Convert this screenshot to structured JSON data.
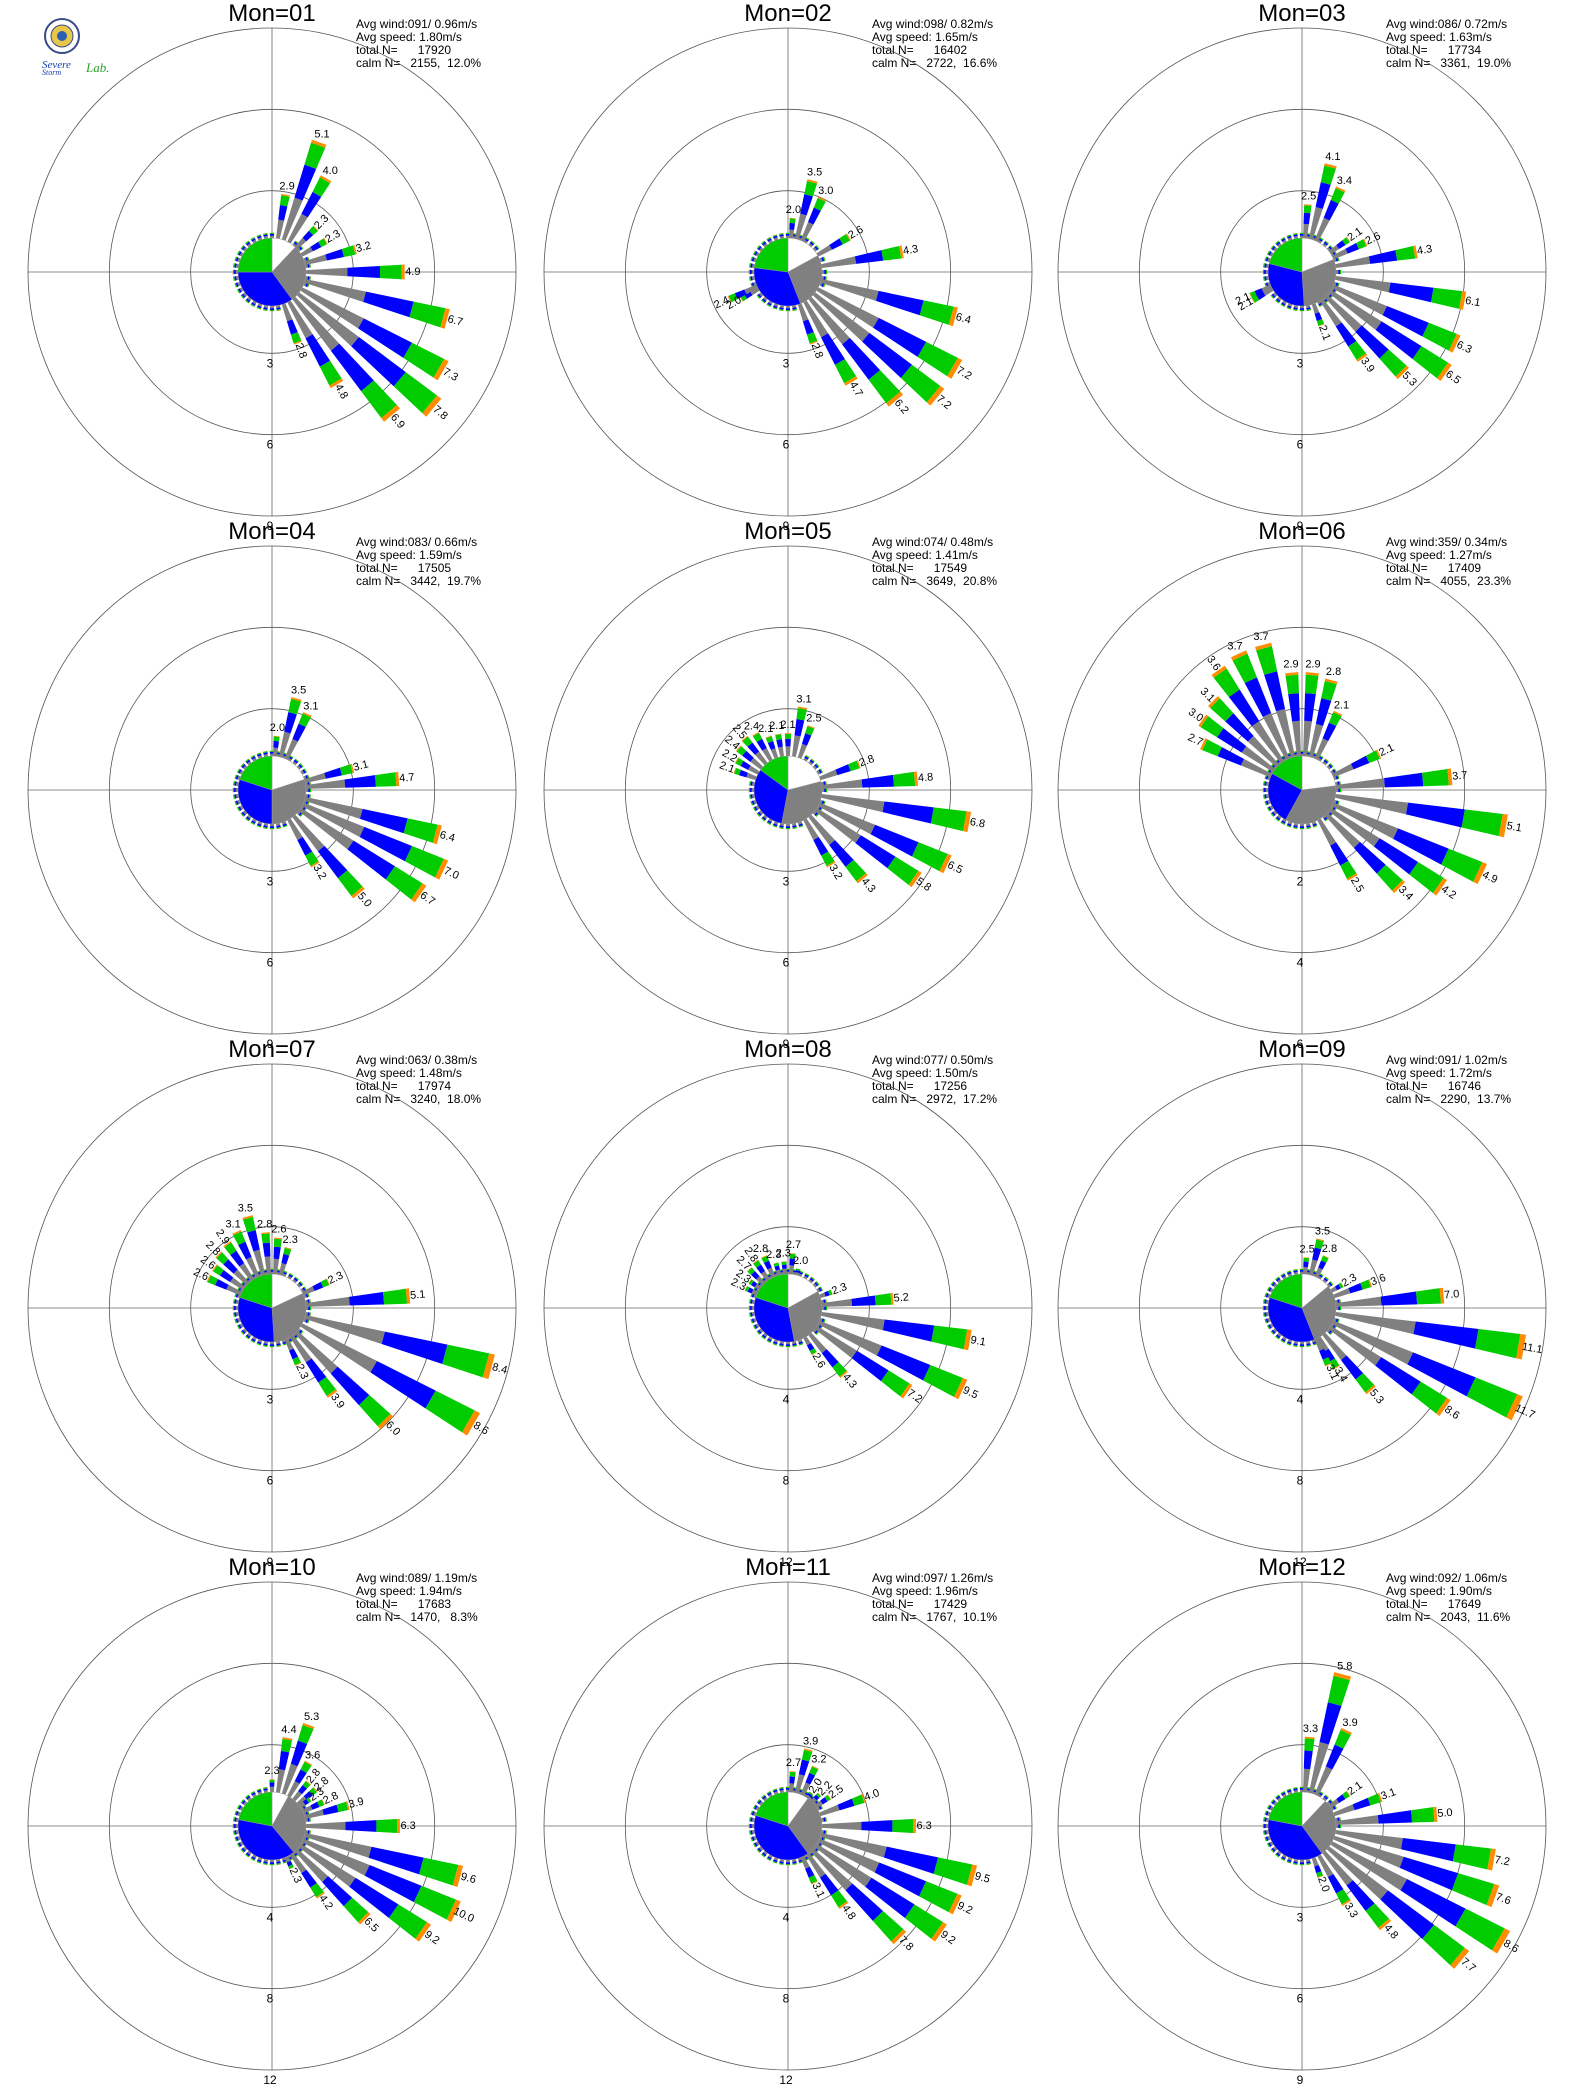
{
  "logo": {
    "line1": "Severe",
    "line2": "Storm",
    "line3": "Lab."
  },
  "colors": {
    "calm": "#ffffff",
    "cat1": "#808080",
    "cat2": "#0000ff",
    "cat3": "#00cc00",
    "cat4": "#ff8c00",
    "grid": "#bfbfbf",
    "axis": "#666666"
  },
  "chart_data": [
    {
      "type": "rose",
      "title": "Mon=01",
      "stats": [
        "Avg wind:091/ 0.96m/s",
        "Avg speed: 1.80m/s",
        "total N=      17920",
        "calm N=   2155,  12.0%"
      ],
      "ring_labels": [
        "3",
        "6",
        "9"
      ],
      "rmax": 9,
      "pie": [
        0.12,
        0.28,
        0.35,
        0.25
      ],
      "pie_start": 0,
      "bar_labels": [
        {
          "dir": 10,
          "v": 2.9
        },
        {
          "dir": 20,
          "v": 5.1
        },
        {
          "dir": 30,
          "v": 4.0
        },
        {
          "dir": 45,
          "v": 2.3
        },
        {
          "dir": 60,
          "v": 2.3
        },
        {
          "dir": 75,
          "v": 3.2
        },
        {
          "dir": 90,
          "v": 4.9
        },
        {
          "dir": 105,
          "v": 6.7
        },
        {
          "dir": 120,
          "v": 7.3
        },
        {
          "dir": 130,
          "v": 7.8
        },
        {
          "dir": 140,
          "v": 6.9
        },
        {
          "dir": 150,
          "v": 4.8
        },
        {
          "dir": 160,
          "v": 2.8
        }
      ]
    },
    {
      "type": "rose",
      "title": "Mon=02",
      "stats": [
        "Avg wind:098/ 0.82m/s",
        "Avg speed: 1.65m/s",
        "total N=      16402",
        "calm N=   2722,  16.6%"
      ],
      "ring_labels": [
        "3",
        "6",
        "9"
      ],
      "rmax": 9,
      "pie": [
        0.17,
        0.27,
        0.33,
        0.23
      ],
      "pie_start": 0,
      "bar_labels": [
        {
          "dir": 5,
          "v": 2.0
        },
        {
          "dir": 15,
          "v": 3.5
        },
        {
          "dir": 25,
          "v": 3.0
        },
        {
          "dir": 60,
          "v": 2.6
        },
        {
          "dir": 80,
          "v": 4.3
        },
        {
          "dir": 105,
          "v": 6.4
        },
        {
          "dir": 120,
          "v": 7.2
        },
        {
          "dir": 130,
          "v": 7.2
        },
        {
          "dir": 140,
          "v": 6.2
        },
        {
          "dir": 150,
          "v": 4.7
        },
        {
          "dir": 160,
          "v": 2.8
        },
        {
          "dir": 240,
          "v": 2.0
        },
        {
          "dir": 245,
          "v": 2.4
        }
      ]
    },
    {
      "type": "rose",
      "title": "Mon=03",
      "stats": [
        "Avg wind:086/ 0.72m/s",
        "Avg speed: 1.63m/s",
        "total N=      17734",
        "calm N=   3361,  19.0%"
      ],
      "ring_labels": [
        "3",
        "6",
        "9"
      ],
      "rmax": 9,
      "pie": [
        0.19,
        0.3,
        0.3,
        0.21
      ],
      "pie_start": 0,
      "bar_labels": [
        {
          "dir": 5,
          "v": 2.5
        },
        {
          "dir": 15,
          "v": 4.1
        },
        {
          "dir": 25,
          "v": 3.4
        },
        {
          "dir": 55,
          "v": 2.1
        },
        {
          "dir": 65,
          "v": 2.6
        },
        {
          "dir": 80,
          "v": 4.3
        },
        {
          "dir": 100,
          "v": 6.1
        },
        {
          "dir": 115,
          "v": 6.3
        },
        {
          "dir": 125,
          "v": 6.5
        },
        {
          "dir": 135,
          "v": 5.3
        },
        {
          "dir": 145,
          "v": 3.9
        },
        {
          "dir": 160,
          "v": 2.1
        },
        {
          "dir": 240,
          "v": 2.1
        },
        {
          "dir": 245,
          "v": 2.1
        }
      ]
    },
    {
      "type": "rose",
      "title": "Mon=04",
      "stats": [
        "Avg wind:083/ 0.66m/s",
        "Avg speed: 1.59m/s",
        "total N=      17505",
        "calm N=   3442,  19.7%"
      ],
      "ring_labels": [
        "3",
        "6",
        "9"
      ],
      "rmax": 9,
      "pie": [
        0.2,
        0.3,
        0.3,
        0.2
      ],
      "pie_start": 0,
      "bar_labels": [
        {
          "dir": 5,
          "v": 2.0
        },
        {
          "dir": 15,
          "v": 3.5
        },
        {
          "dir": 25,
          "v": 3.1
        },
        {
          "dir": 75,
          "v": 3.1
        },
        {
          "dir": 85,
          "v": 4.7
        },
        {
          "dir": 105,
          "v": 6.4
        },
        {
          "dir": 115,
          "v": 7.0
        },
        {
          "dir": 125,
          "v": 6.7
        },
        {
          "dir": 140,
          "v": 5.0
        },
        {
          "dir": 150,
          "v": 3.2
        }
      ]
    },
    {
      "type": "rose",
      "title": "Mon=05",
      "stats": [
        "Avg wind:074/ 0.48m/s",
        "Avg speed: 1.41m/s",
        "total N=      17549",
        "calm N=   3649,  20.8%"
      ],
      "ring_labels": [
        "3",
        "6",
        "9"
      ],
      "rmax": 9,
      "pie": [
        0.21,
        0.32,
        0.32,
        0.15
      ],
      "pie_start": 0,
      "bar_labels": [
        {
          "dir": 290,
          "v": 2.1
        },
        {
          "dir": 300,
          "v": 2.2
        },
        {
          "dir": 310,
          "v": 2.4
        },
        {
          "dir": 320,
          "v": 2.5
        },
        {
          "dir": 330,
          "v": 2.4
        },
        {
          "dir": 340,
          "v": 2.1
        },
        {
          "dir": 350,
          "v": 2.1
        },
        {
          "dir": 0,
          "v": 2.1
        },
        {
          "dir": 10,
          "v": 3.1
        },
        {
          "dir": 20,
          "v": 2.5
        },
        {
          "dir": 70,
          "v": 2.8
        },
        {
          "dir": 85,
          "v": 4.8
        },
        {
          "dir": 100,
          "v": 6.8
        },
        {
          "dir": 115,
          "v": 6.5
        },
        {
          "dir": 125,
          "v": 5.8
        },
        {
          "dir": 140,
          "v": 4.3
        },
        {
          "dir": 150,
          "v": 3.2
        }
      ]
    },
    {
      "type": "rose",
      "title": "Mon=06",
      "stats": [
        "Avg wind:359/ 0.34m/s",
        "Avg speed: 1.27m/s",
        "total N=      17409",
        "calm N=   4055,  23.3%"
      ],
      "ring_labels": [
        "2",
        "4",
        "6"
      ],
      "rmax": 6,
      "pie": [
        0.23,
        0.35,
        0.25,
        0.17
      ],
      "pie_start": 0,
      "bar_labels": [
        {
          "dir": 295,
          "v": 2.7
        },
        {
          "dir": 305,
          "v": 3.0
        },
        {
          "dir": 315,
          "v": 3.1
        },
        {
          "dir": 325,
          "v": 3.6
        },
        {
          "dir": 335,
          "v": 3.7
        },
        {
          "dir": 345,
          "v": 3.7
        },
        {
          "dir": 355,
          "v": 2.9
        },
        {
          "dir": 5,
          "v": 2.9
        },
        {
          "dir": 15,
          "v": 2.8
        },
        {
          "dir": 25,
          "v": 2.1
        },
        {
          "dir": 65,
          "v": 2.1
        },
        {
          "dir": 85,
          "v": 3.7
        },
        {
          "dir": 100,
          "v": 5.1
        },
        {
          "dir": 115,
          "v": 4.9
        },
        {
          "dir": 125,
          "v": 4.2
        },
        {
          "dir": 135,
          "v": 3.4
        },
        {
          "dir": 150,
          "v": 2.5
        }
      ]
    },
    {
      "type": "rose",
      "title": "Mon=07",
      "stats": [
        "Avg wind:063/ 0.38m/s",
        "Avg speed: 1.48m/s",
        "total N=      17974",
        "calm N=   3240,  18.0%"
      ],
      "ring_labels": [
        "3",
        "6",
        "9"
      ],
      "rmax": 9,
      "pie": [
        0.18,
        0.31,
        0.31,
        0.2
      ],
      "pie_start": 0,
      "bar_labels": [
        {
          "dir": 295,
          "v": 2.6
        },
        {
          "dir": 305,
          "v": 2.6
        },
        {
          "dir": 315,
          "v": 2.8
        },
        {
          "dir": 325,
          "v": 2.9
        },
        {
          "dir": 335,
          "v": 3.1
        },
        {
          "dir": 345,
          "v": 3.5
        },
        {
          "dir": 355,
          "v": 2.8
        },
        {
          "dir": 5,
          "v": 2.6
        },
        {
          "dir": 15,
          "v": 2.3
        },
        {
          "dir": 65,
          "v": 2.3
        },
        {
          "dir": 85,
          "v": 5.1
        },
        {
          "dir": 105,
          "v": 8.4
        },
        {
          "dir": 120,
          "v": 8.6
        },
        {
          "dir": 135,
          "v": 6.0
        },
        {
          "dir": 145,
          "v": 3.9
        },
        {
          "dir": 155,
          "v": 2.3
        }
      ]
    },
    {
      "type": "rose",
      "title": "Mon=08",
      "stats": [
        "Avg wind:077/ 0.50m/s",
        "Avg speed: 1.50m/s",
        "total N=      17256",
        "calm N=   2972,  17.2%"
      ],
      "ring_labels": [
        "4",
        "8",
        "12"
      ],
      "rmax": 12,
      "pie": [
        0.17,
        0.3,
        0.33,
        0.2
      ],
      "pie_start": 0,
      "bar_labels": [
        {
          "dir": 295,
          "v": 2.3
        },
        {
          "dir": 305,
          "v": 2.3
        },
        {
          "dir": 315,
          "v": 2.7
        },
        {
          "dir": 325,
          "v": 2.8
        },
        {
          "dir": 335,
          "v": 2.8
        },
        {
          "dir": 345,
          "v": 2.3
        },
        {
          "dir": 355,
          "v": 2.3
        },
        {
          "dir": 5,
          "v": 2.7
        },
        {
          "dir": 15,
          "v": 2.0
        },
        {
          "dir": 70,
          "v": 2.3
        },
        {
          "dir": 85,
          "v": 5.2
        },
        {
          "dir": 100,
          "v": 9.1
        },
        {
          "dir": 115,
          "v": 9.5
        },
        {
          "dir": 125,
          "v": 7.2
        },
        {
          "dir": 140,
          "v": 4.3
        },
        {
          "dir": 150,
          "v": 2.6
        }
      ]
    },
    {
      "type": "rose",
      "title": "Mon=09",
      "stats": [
        "Avg wind:091/ 1.02m/s",
        "Avg speed: 1.72m/s",
        "total N=      16746",
        "calm N=   2290,  13.7%"
      ],
      "ring_labels": [
        "4",
        "8",
        "12"
      ],
      "rmax": 12,
      "pie": [
        0.14,
        0.3,
        0.36,
        0.2
      ],
      "pie_start": 0,
      "bar_labels": [
        {
          "dir": 5,
          "v": 2.5
        },
        {
          "dir": 15,
          "v": 3.5
        },
        {
          "dir": 25,
          "v": 2.8
        },
        {
          "dir": 60,
          "v": 2.3
        },
        {
          "dir": 70,
          "v": 3.6
        },
        {
          "dir": 85,
          "v": 7.0
        },
        {
          "dir": 100,
          "v": 11.1
        },
        {
          "dir": 115,
          "v": 11.7
        },
        {
          "dir": 125,
          "v": 8.6
        },
        {
          "dir": 140,
          "v": 5.3
        },
        {
          "dir": 150,
          "v": 3.4
        },
        {
          "dir": 155,
          "v": 3.1
        }
      ]
    },
    {
      "type": "rose",
      "title": "Mon=10",
      "stats": [
        "Avg wind:089/ 1.19m/s",
        "Avg speed: 1.94m/s",
        "total N=      17683",
        "calm N=   1470,   8.3%"
      ],
      "ring_labels": [
        "4",
        "8",
        "12"
      ],
      "rmax": 12,
      "pie": [
        0.08,
        0.31,
        0.39,
        0.22
      ],
      "pie_start": 0,
      "bar_labels": [
        {
          "dir": 0,
          "v": 2.3
        },
        {
          "dir": 10,
          "v": 4.4
        },
        {
          "dir": 20,
          "v": 5.3
        },
        {
          "dir": 30,
          "v": 3.6
        },
        {
          "dir": 40,
          "v": 2.8
        },
        {
          "dir": 50,
          "v": 2.8
        },
        {
          "dir": 55,
          "v": 2.3
        },
        {
          "dir": 65,
          "v": 2.8
        },
        {
          "dir": 75,
          "v": 3.9
        },
        {
          "dir": 90,
          "v": 6.3
        },
        {
          "dir": 105,
          "v": 9.6
        },
        {
          "dir": 115,
          "v": 10.0
        },
        {
          "dir": 125,
          "v": 9.2
        },
        {
          "dir": 135,
          "v": 6.5
        },
        {
          "dir": 145,
          "v": 4.2
        },
        {
          "dir": 155,
          "v": 2.3
        }
      ]
    },
    {
      "type": "rose",
      "title": "Mon=11",
      "stats": [
        "Avg wind:097/ 1.26m/s",
        "Avg speed: 1.96m/s",
        "total N=      17429",
        "calm N=   1767,  10.1%"
      ],
      "ring_labels": [
        "4",
        "8",
        "12"
      ],
      "rmax": 12,
      "pie": [
        0.1,
        0.3,
        0.4,
        0.2
      ],
      "pie_start": 0,
      "bar_labels": [
        {
          "dir": 5,
          "v": 2.7
        },
        {
          "dir": 15,
          "v": 3.9
        },
        {
          "dir": 25,
          "v": 3.2
        },
        {
          "dir": 35,
          "v": 2.0
        },
        {
          "dir": 45,
          "v": 2.2
        },
        {
          "dir": 55,
          "v": 2.5
        },
        {
          "dir": 70,
          "v": 4.0
        },
        {
          "dir": 90,
          "v": 6.3
        },
        {
          "dir": 105,
          "v": 9.5
        },
        {
          "dir": 115,
          "v": 9.2
        },
        {
          "dir": 125,
          "v": 9.2
        },
        {
          "dir": 135,
          "v": 7.8
        },
        {
          "dir": 145,
          "v": 4.8
        },
        {
          "dir": 155,
          "v": 3.1
        }
      ]
    },
    {
      "type": "rose",
      "title": "Mon=12",
      "stats": [
        "Avg wind:092/ 1.06m/s",
        "Avg speed: 1.90m/s",
        "total N=      17649",
        "calm N=   2043,  11.6%"
      ],
      "ring_labels": [
        "3",
        "6",
        "9"
      ],
      "rmax": 9,
      "pie": [
        0.12,
        0.28,
        0.38,
        0.22
      ],
      "pie_start": 0,
      "bar_labels": [
        {
          "dir": 5,
          "v": 3.3
        },
        {
          "dir": 15,
          "v": 5.8
        },
        {
          "dir": 25,
          "v": 3.9
        },
        {
          "dir": 55,
          "v": 2.1
        },
        {
          "dir": 70,
          "v": 3.1
        },
        {
          "dir": 85,
          "v": 5.0
        },
        {
          "dir": 100,
          "v": 7.2
        },
        {
          "dir": 110,
          "v": 7.6
        },
        {
          "dir": 120,
          "v": 8.6
        },
        {
          "dir": 130,
          "v": 7.7
        },
        {
          "dir": 140,
          "v": 4.8
        },
        {
          "dir": 150,
          "v": 3.3
        },
        {
          "dir": 160,
          "v": 2.0
        }
      ]
    }
  ]
}
